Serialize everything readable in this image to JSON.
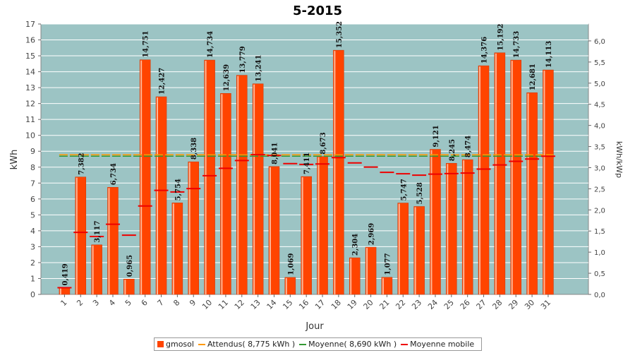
{
  "chart_data": {
    "type": "bar",
    "title": "5-2015",
    "xlabel": "Jour",
    "ylabel": "kWh",
    "y2label": "kWh/kWp",
    "ylim": [
      0,
      17
    ],
    "y2lim": [
      0,
      6.4
    ],
    "y_ticks": [
      0,
      1,
      2,
      3,
      4,
      5,
      6,
      7,
      8,
      9,
      10,
      11,
      12,
      13,
      14,
      15,
      16,
      17
    ],
    "y2_ticks": [
      "0,0",
      "0,5",
      "1,0",
      "1,5",
      "2,0",
      "2,5",
      "3,0",
      "3,5",
      "4,0",
      "4,5",
      "5,0",
      "5,5",
      "6,0"
    ],
    "categories": [
      "1",
      "2",
      "3",
      "4",
      "5",
      "6",
      "7",
      "8",
      "9",
      "10",
      "11",
      "12",
      "13",
      "14",
      "15",
      "16",
      "17",
      "18",
      "19",
      "20",
      "21",
      "22",
      "23",
      "24",
      "25",
      "26",
      "27",
      "28",
      "29",
      "30",
      "31"
    ],
    "series": [
      {
        "name": "gmosol",
        "type": "bar",
        "color": "#ff4400",
        "values": [
          0.419,
          7.382,
          3.117,
          6.734,
          0.965,
          14.751,
          12.427,
          5.754,
          8.338,
          14.734,
          12.639,
          13.779,
          13.241,
          8.041,
          1.069,
          7.411,
          8.673,
          15.352,
          2.304,
          2.969,
          1.077,
          5.747,
          5.528,
          9.121,
          8.245,
          8.474,
          14.376,
          15.192,
          14.733,
          12.681,
          14.113
        ],
        "labels": [
          "0,419",
          "7,382",
          "3,117",
          "6,734",
          "0,965",
          "14,751",
          "12,427",
          "5,754",
          "8,338",
          "14,734",
          "12,639",
          "13,779",
          "13,241",
          "8,041",
          "1,069",
          "7,411",
          "8,673",
          "15,352",
          "2,304",
          "2,969",
          "1,077",
          "5,747",
          "5,528",
          "9,121",
          "8,245",
          "8,474",
          "14,376",
          "15,192",
          "14,733",
          "12,681",
          "14,113"
        ]
      },
      {
        "name": "Attendus( 8,775 kWh )",
        "type": "line",
        "color": "#ff9900",
        "value": 8.775
      },
      {
        "name": "Moyenne( 8,690 kWh )",
        "type": "line",
        "color": "#339933",
        "value": 8.69
      },
      {
        "name": "Moyenne mobile",
        "type": "step",
        "color": "#ee0000",
        "values": [
          0.419,
          3.9,
          3.639,
          4.413,
          3.723,
          5.561,
          6.542,
          6.443,
          6.653,
          7.461,
          7.93,
          8.418,
          8.789,
          8.735,
          8.224,
          8.173,
          8.203,
          8.6,
          8.269,
          8.004,
          7.674,
          7.586,
          7.497,
          7.565,
          7.593,
          7.627,
          7.877,
          8.138,
          8.366,
          8.509,
          8.69
        ]
      }
    ],
    "grid": true,
    "legend_position": "bottom"
  },
  "legend": {
    "items": [
      {
        "label": "gmosol",
        "color": "#ff4400",
        "kind": "box"
      },
      {
        "label": "Attendus( 8,775 kWh )",
        "color": "#ff9900",
        "kind": "line"
      },
      {
        "label": "Moyenne( 8,690 kWh )",
        "color": "#339933",
        "kind": "line"
      },
      {
        "label": "Moyenne mobile",
        "color": "#ee0000",
        "kind": "line"
      }
    ]
  },
  "colors": {
    "plot_background": "#9cc4c4",
    "grid": "#ffffff"
  }
}
